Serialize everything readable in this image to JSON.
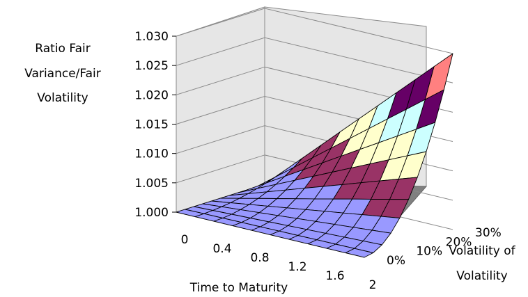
{
  "chart_data": {
    "type": "surface",
    "title": "",
    "z_label_lines": [
      "Ratio Fair",
      "Variance/Fair",
      "Volatility"
    ],
    "x_label": "Time to Maturity",
    "y_label_lines": [
      "Volatility of",
      "Volatility"
    ],
    "z_ticks": [
      "1.000",
      "1.005",
      "1.010",
      "1.015",
      "1.020",
      "1.025",
      "1.030"
    ],
    "z_range": [
      1.0,
      1.03
    ],
    "x_ticks": [
      "0",
      "0.4",
      "0.8",
      "1.2",
      "1.6",
      "2"
    ],
    "x_range": [
      0,
      2
    ],
    "y_ticks": [
      "0%",
      "10%",
      "20%",
      "30%"
    ],
    "y_range": [
      0,
      0.3
    ],
    "grid": true,
    "surface_model": "ratio = 1 + 0.0333 * T * volvol^2",
    "bands": [
      {
        "range": [
          1.0,
          1.005
        ],
        "color": "#9999ff"
      },
      {
        "range": [
          1.005,
          1.01
        ],
        "color": "#993366"
      },
      {
        "range": [
          1.01,
          1.015
        ],
        "color": "#ffffcc"
      },
      {
        "range": [
          1.015,
          1.02
        ],
        "color": "#ccffff"
      },
      {
        "range": [
          1.02,
          1.025
        ],
        "color": "#660066"
      },
      {
        "range": [
          1.025,
          1.03
        ],
        "color": "#ff8080"
      }
    ]
  }
}
